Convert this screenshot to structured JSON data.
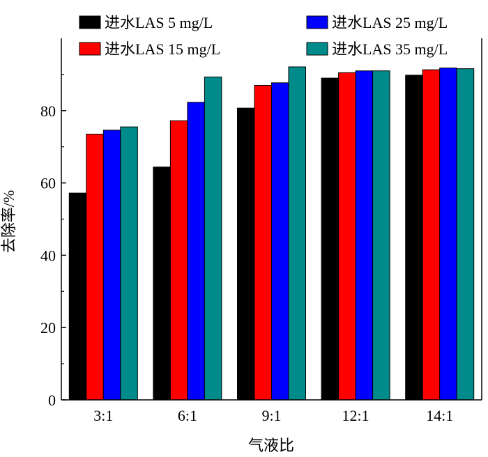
{
  "chart_data": {
    "type": "bar",
    "xlabel": "气液比",
    "ylabel": "去除率/%",
    "categories": [
      "3:1",
      "6:1",
      "9:1",
      "12:1",
      "14:1"
    ],
    "ylim": [
      0,
      100
    ],
    "yticks": [
      0,
      20,
      40,
      60,
      80
    ],
    "grid": false,
    "legend_position": "top",
    "series": [
      {
        "name": "进水LAS 5 mg/L",
        "color": "#000000",
        "values": [
          57.2,
          64.4,
          80.7,
          89.0,
          89.8
        ]
      },
      {
        "name": "进水LAS 15 mg/L",
        "color": "#ff0000",
        "values": [
          73.5,
          77.2,
          87.0,
          90.5,
          91.3
        ]
      },
      {
        "name": "进水LAS 25 mg/L",
        "color": "#0000ff",
        "values": [
          74.6,
          82.3,
          87.7,
          91.0,
          91.8
        ]
      },
      {
        "name": "进水LAS 35 mg/L",
        "color": "#008b8b",
        "values": [
          75.5,
          89.3,
          92.1,
          91.0,
          91.6
        ]
      }
    ]
  }
}
